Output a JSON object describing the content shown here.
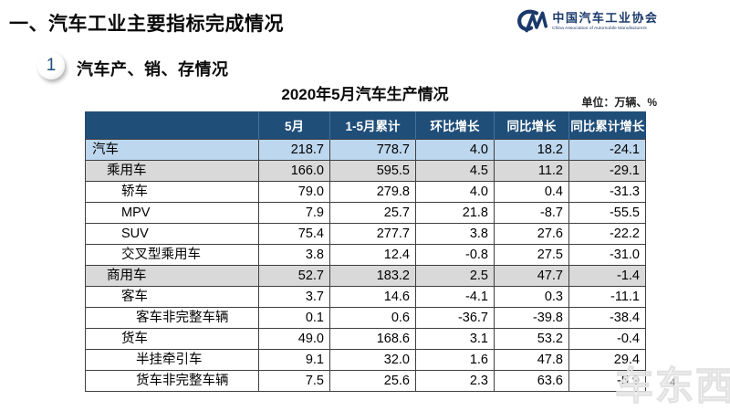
{
  "page": {
    "main_title": "一、汽车工业主要指标完成情况",
    "page_number": "4",
    "watermark": "车东西"
  },
  "logo": {
    "mark": "cm-monogram",
    "org_cn": "中国汽车工业协会",
    "org_en": "China Association of Automobile Manufacturers"
  },
  "section": {
    "number": "1",
    "title": "汽车产、销、存情况"
  },
  "table": {
    "title": "2020年5月汽车生产情况",
    "unit_label": "单位：万辆、%",
    "columns": [
      "",
      "5月",
      "1-5月累计",
      "环比增长",
      "同比增长",
      "同比累计增长"
    ],
    "rows": [
      {
        "label": "汽车",
        "indent": 0,
        "style": "row-blue",
        "values": [
          "218.7",
          "778.7",
          "4.0",
          "18.2",
          "-24.1"
        ]
      },
      {
        "label": "乘用车",
        "indent": 1,
        "style": "row-gray",
        "values": [
          "166.0",
          "595.5",
          "4.5",
          "11.2",
          "-29.1"
        ]
      },
      {
        "label": "轿车",
        "indent": 2,
        "style": "row-plain",
        "values": [
          "79.0",
          "279.8",
          "4.0",
          "0.4",
          "-31.3"
        ]
      },
      {
        "label": "MPV",
        "indent": 2,
        "style": "row-plain",
        "values": [
          "7.9",
          "25.7",
          "21.8",
          "-8.7",
          "-55.5"
        ]
      },
      {
        "label": "SUV",
        "indent": 2,
        "style": "row-plain",
        "values": [
          "75.4",
          "277.7",
          "3.8",
          "27.6",
          "-22.2"
        ]
      },
      {
        "label": "交叉型乘用车",
        "indent": 2,
        "style": "row-plain",
        "values": [
          "3.8",
          "12.4",
          "-0.8",
          "27.5",
          "-31.0"
        ]
      },
      {
        "label": "商用车",
        "indent": 1,
        "style": "row-gray",
        "values": [
          "52.7",
          "183.2",
          "2.5",
          "47.7",
          "-1.4"
        ]
      },
      {
        "label": "客车",
        "indent": 2,
        "style": "row-plain",
        "values": [
          "3.7",
          "14.6",
          "-4.1",
          "0.3",
          "-11.1"
        ]
      },
      {
        "label": "客车非完整车辆",
        "indent": 3,
        "style": "row-plain",
        "values": [
          "0.1",
          "0.6",
          "-36.7",
          "-39.8",
          "-38.4"
        ]
      },
      {
        "label": "货车",
        "indent": 2,
        "style": "row-plain",
        "values": [
          "49.0",
          "168.6",
          "3.1",
          "53.2",
          "-0.4"
        ]
      },
      {
        "label": "半挂牵引车",
        "indent": 3,
        "style": "row-plain",
        "values": [
          "9.1",
          "32.0",
          "1.6",
          "47.8",
          "29.4"
        ]
      },
      {
        "label": "货车非完整车辆",
        "indent": 3,
        "style": "row-plain",
        "values": [
          "7.5",
          "25.6",
          "2.3",
          "63.6",
          "-5.9"
        ]
      }
    ]
  },
  "colors": {
    "header_bg": "#1F4E79",
    "row_blue": "#BDD7EE",
    "row_gray": "#D9D9D9",
    "logo_blue": "#1B3A6B"
  }
}
